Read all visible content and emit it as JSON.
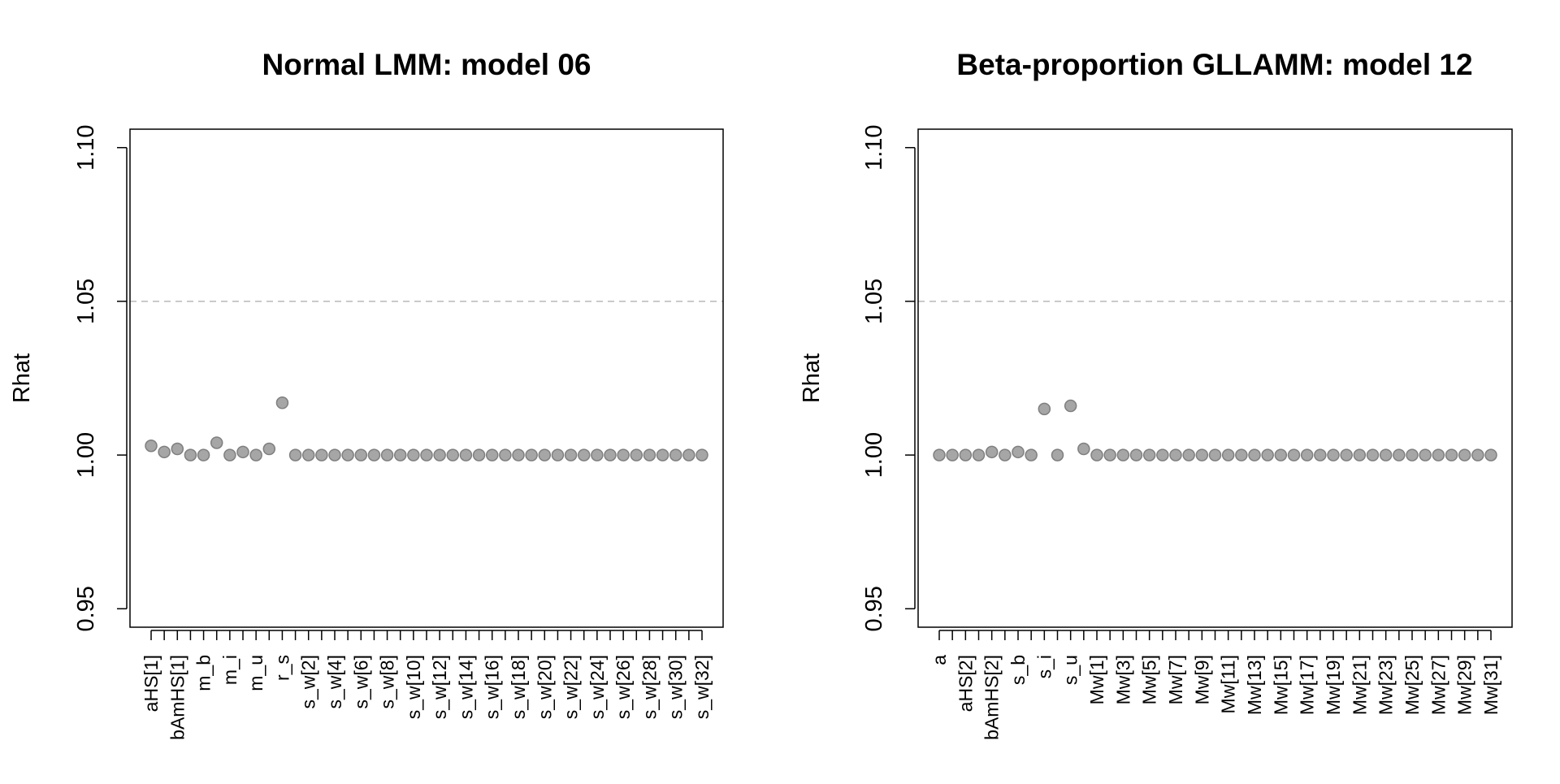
{
  "colors": {
    "point_fill": "#a6a6a6",
    "point_stroke": "#7f7f7f",
    "reference_line": "#bebebe",
    "axis": "#000000"
  },
  "chart_data": [
    {
      "type": "scatter",
      "title": "Normal LMM: model 06",
      "xlabel": "",
      "ylabel": "Rhat",
      "ylim": [
        0.95,
        1.1
      ],
      "yticks": [
        0.95,
        1.0,
        1.05,
        1.1
      ],
      "ytick_labels": [
        "0.95",
        "1.00",
        "1.05",
        "1.10"
      ],
      "reference_line": 1.05,
      "grid": false,
      "n_params": 43,
      "x_tick_labels": [
        {
          "pos": 1,
          "label": "aHS[1]"
        },
        {
          "pos": 3,
          "label": "bAmHS[1]"
        },
        {
          "pos": 5,
          "label": "m_b"
        },
        {
          "pos": 7,
          "label": "m_i"
        },
        {
          "pos": 9,
          "label": "m_u"
        },
        {
          "pos": 11,
          "label": "r_s"
        },
        {
          "pos": 13,
          "label": "s_w[2]"
        },
        {
          "pos": 15,
          "label": "s_w[4]"
        },
        {
          "pos": 17,
          "label": "s_w[6]"
        },
        {
          "pos": 19,
          "label": "s_w[8]"
        },
        {
          "pos": 21,
          "label": "s_w[10]"
        },
        {
          "pos": 23,
          "label": "s_w[12]"
        },
        {
          "pos": 25,
          "label": "s_w[14]"
        },
        {
          "pos": 27,
          "label": "s_w[16]"
        },
        {
          "pos": 29,
          "label": "s_w[18]"
        },
        {
          "pos": 31,
          "label": "s_w[20]"
        },
        {
          "pos": 33,
          "label": "s_w[22]"
        },
        {
          "pos": 35,
          "label": "s_w[24]"
        },
        {
          "pos": 37,
          "label": "s_w[26]"
        },
        {
          "pos": 39,
          "label": "s_w[28]"
        },
        {
          "pos": 41,
          "label": "s_w[30]"
        },
        {
          "pos": 43,
          "label": "s_w[32]"
        }
      ],
      "values": [
        1.003,
        1.001,
        1.002,
        1.0,
        1.0,
        1.004,
        1.0,
        1.001,
        1.0,
        1.002,
        1.017,
        1.0,
        1.0,
        1.0,
        1.0,
        1.0,
        1.0,
        1.0,
        1.0,
        1.0,
        1.0,
        1.0,
        1.0,
        1.0,
        1.0,
        1.0,
        1.0,
        1.0,
        1.0,
        1.0,
        1.0,
        1.0,
        1.0,
        1.0,
        1.0,
        1.0,
        1.0,
        1.0,
        1.0,
        1.0,
        1.0,
        1.0,
        1.0
      ]
    },
    {
      "type": "scatter",
      "title": "Beta-proportion GLLAMM: model 12",
      "xlabel": "",
      "ylabel": "Rhat",
      "ylim": [
        0.95,
        1.1
      ],
      "yticks": [
        0.95,
        1.0,
        1.05,
        1.1
      ],
      "ytick_labels": [
        "0.95",
        "1.00",
        "1.05",
        "1.10"
      ],
      "reference_line": 1.05,
      "grid": false,
      "n_params": 43,
      "x_tick_labels": [
        {
          "pos": 1,
          "label": "a"
        },
        {
          "pos": 3,
          "label": "aHS[2]"
        },
        {
          "pos": 5,
          "label": "bAmHS[2]"
        },
        {
          "pos": 7,
          "label": "s_b"
        },
        {
          "pos": 9,
          "label": "s_i"
        },
        {
          "pos": 11,
          "label": "s_u"
        },
        {
          "pos": 13,
          "label": "Mw[1]"
        },
        {
          "pos": 15,
          "label": "Mw[3]"
        },
        {
          "pos": 17,
          "label": "Mw[5]"
        },
        {
          "pos": 19,
          "label": "Mw[7]"
        },
        {
          "pos": 21,
          "label": "Mw[9]"
        },
        {
          "pos": 23,
          "label": "Mw[11]"
        },
        {
          "pos": 25,
          "label": "Mw[13]"
        },
        {
          "pos": 27,
          "label": "Mw[15]"
        },
        {
          "pos": 29,
          "label": "Mw[17]"
        },
        {
          "pos": 31,
          "label": "Mw[19]"
        },
        {
          "pos": 33,
          "label": "Mw[21]"
        },
        {
          "pos": 35,
          "label": "Mw[23]"
        },
        {
          "pos": 37,
          "label": "Mw[25]"
        },
        {
          "pos": 39,
          "label": "Mw[27]"
        },
        {
          "pos": 41,
          "label": "Mw[29]"
        },
        {
          "pos": 43,
          "label": "Mw[31]"
        }
      ],
      "values": [
        1.0,
        1.0,
        1.0,
        1.0,
        1.001,
        1.0,
        1.001,
        1.0,
        1.015,
        1.0,
        1.016,
        1.002,
        1.0,
        1.0,
        1.0,
        1.0,
        1.0,
        1.0,
        1.0,
        1.0,
        1.0,
        1.0,
        1.0,
        1.0,
        1.0,
        1.0,
        1.0,
        1.0,
        1.0,
        1.0,
        1.0,
        1.0,
        1.0,
        1.0,
        1.0,
        1.0,
        1.0,
        1.0,
        1.0,
        1.0,
        1.0,
        1.0,
        1.0
      ]
    }
  ]
}
